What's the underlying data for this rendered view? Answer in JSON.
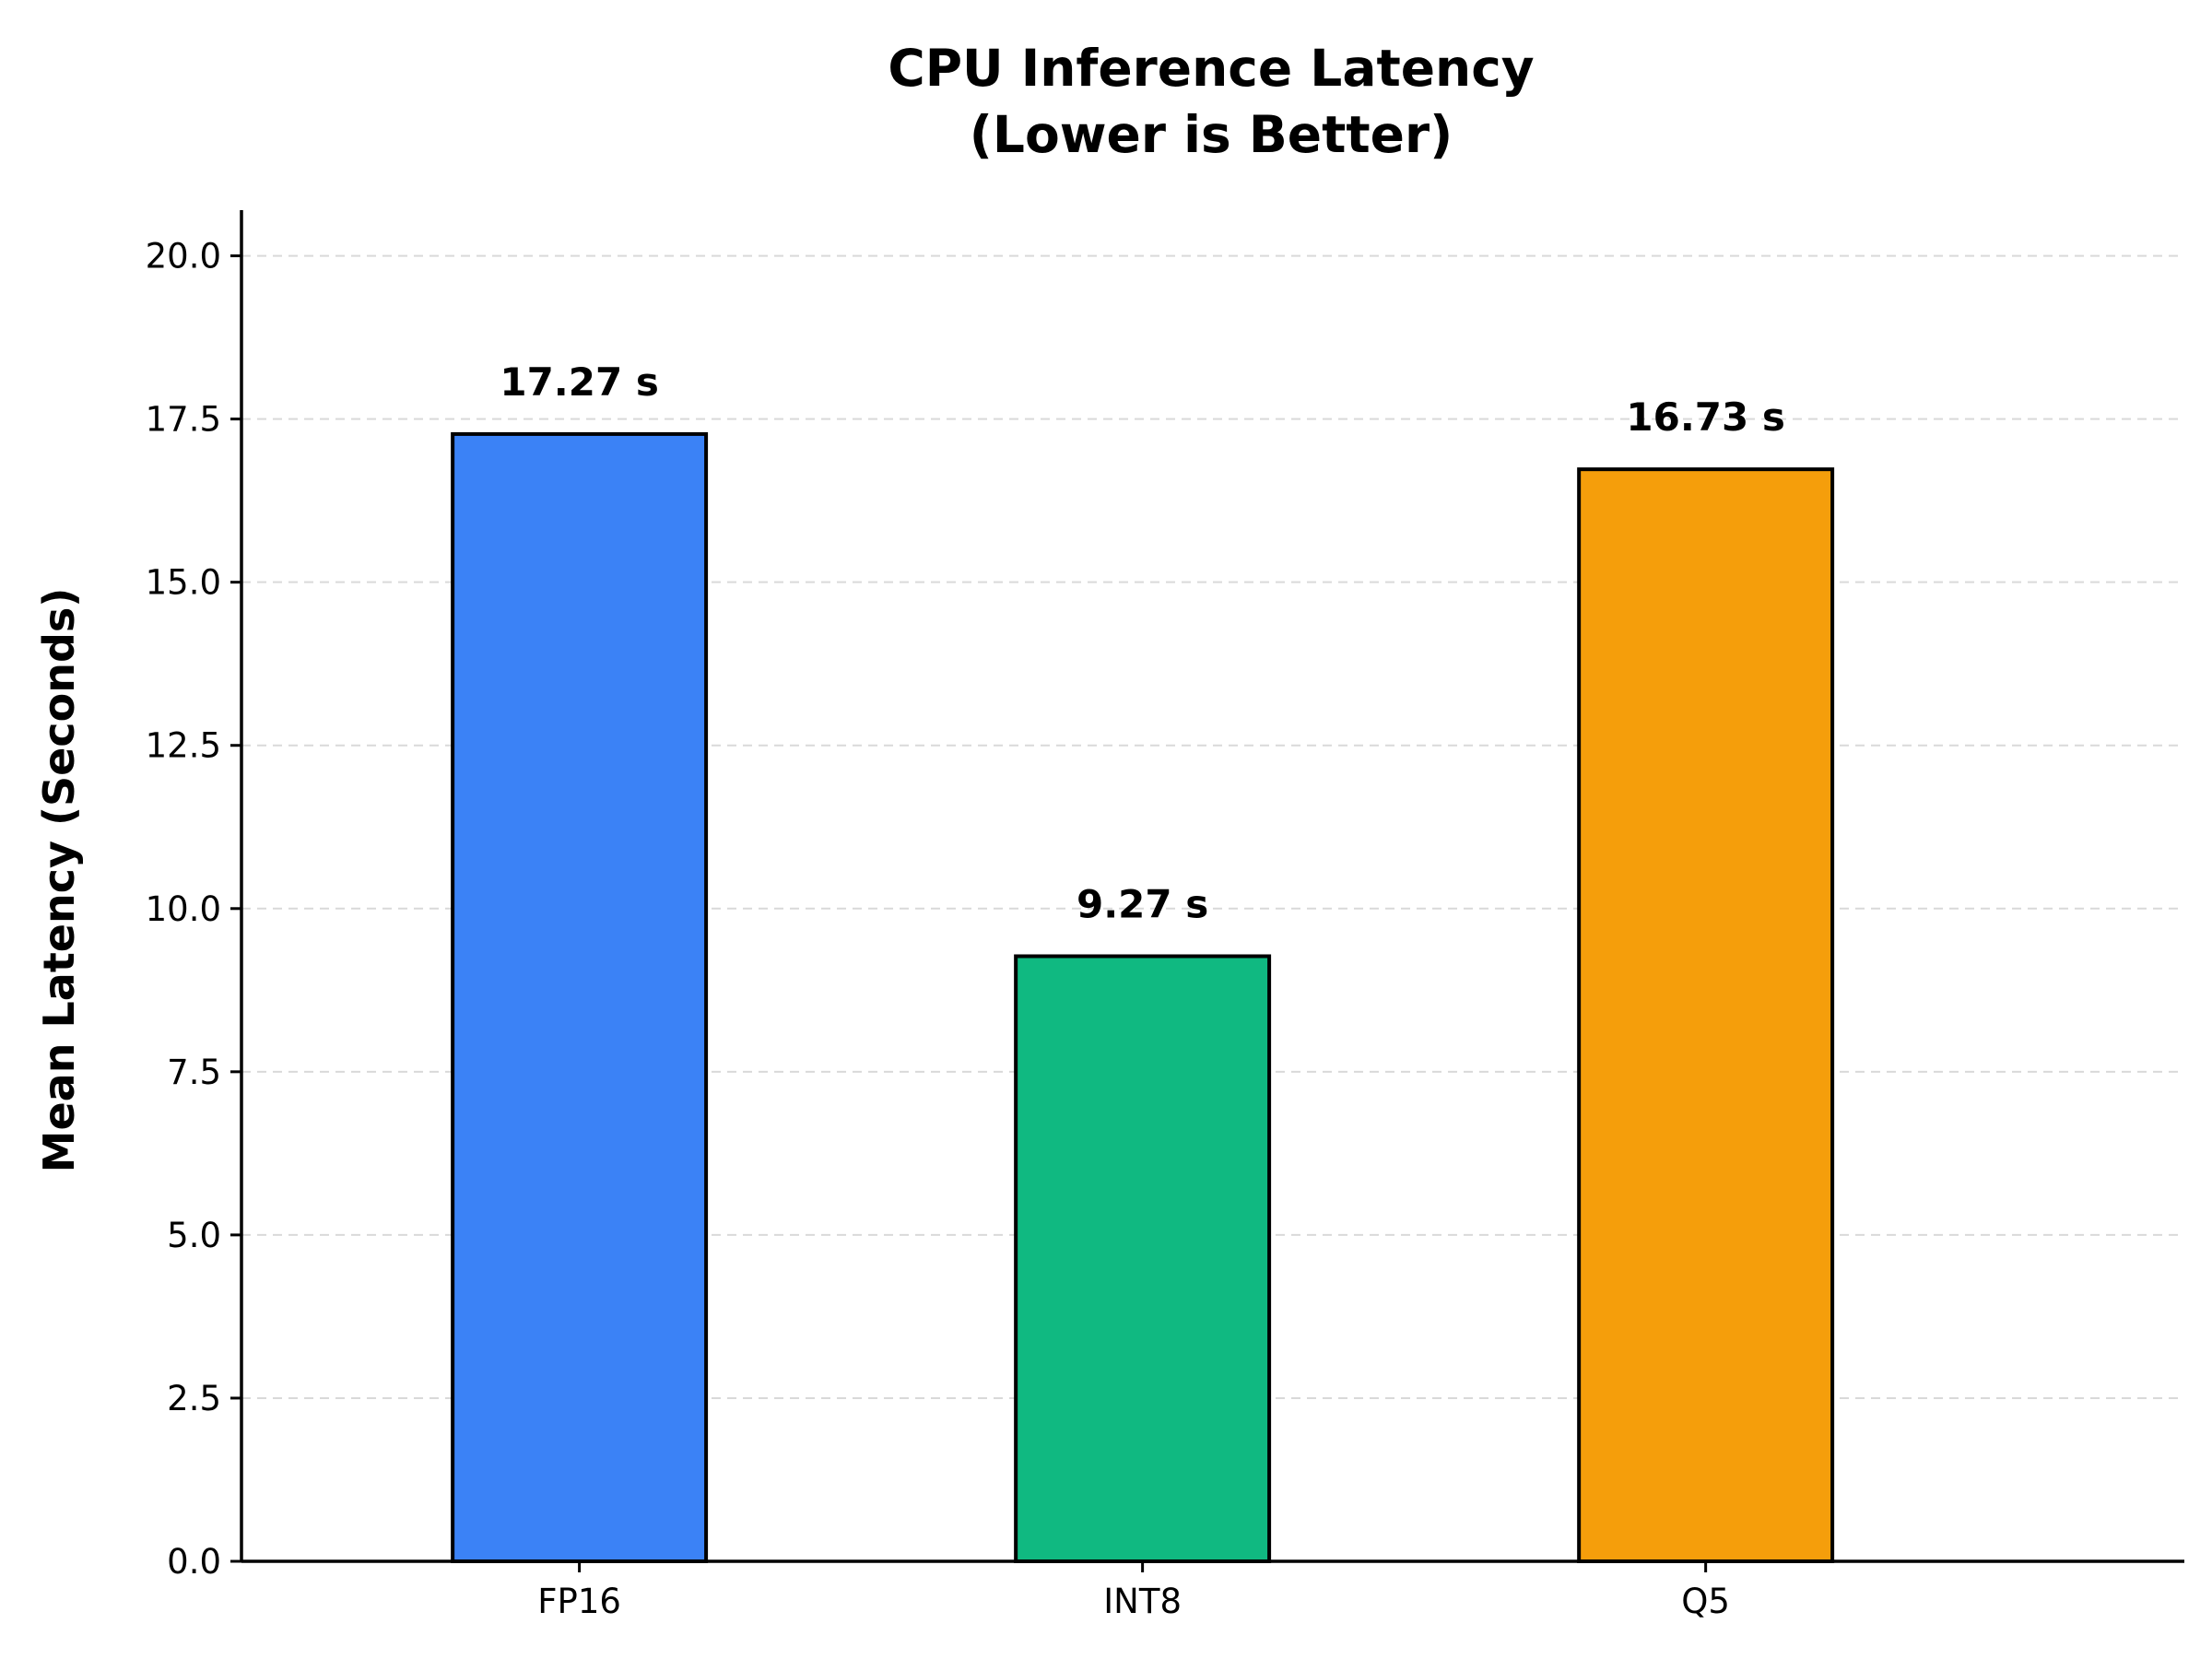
{
  "chart_data": {
    "type": "bar",
    "title_lines": [
      "CPU Inference Latency",
      "(Lower is Better)"
    ],
    "xlabel": "",
    "ylabel": "Mean Latency (Seconds)",
    "categories": [
      "FP16",
      "INT8",
      "Q5"
    ],
    "values": [
      17.27,
      9.27,
      16.73
    ],
    "data_labels": [
      "17.27 s",
      "9.27 s",
      "16.73 s"
    ],
    "colors": [
      "#3b82f6",
      "#10b981",
      "#f59e0b"
    ],
    "ylim": [
      0,
      20.7
    ],
    "yticks": [
      0.0,
      2.5,
      5.0,
      7.5,
      10.0,
      12.5,
      15.0,
      17.5,
      20.0
    ],
    "ytick_labels": [
      "0.0",
      "2.5",
      "5.0",
      "7.5",
      "10.0",
      "12.5",
      "15.0",
      "17.5",
      "20.0"
    ],
    "grid": "horizontal dashed",
    "legend": "none"
  }
}
